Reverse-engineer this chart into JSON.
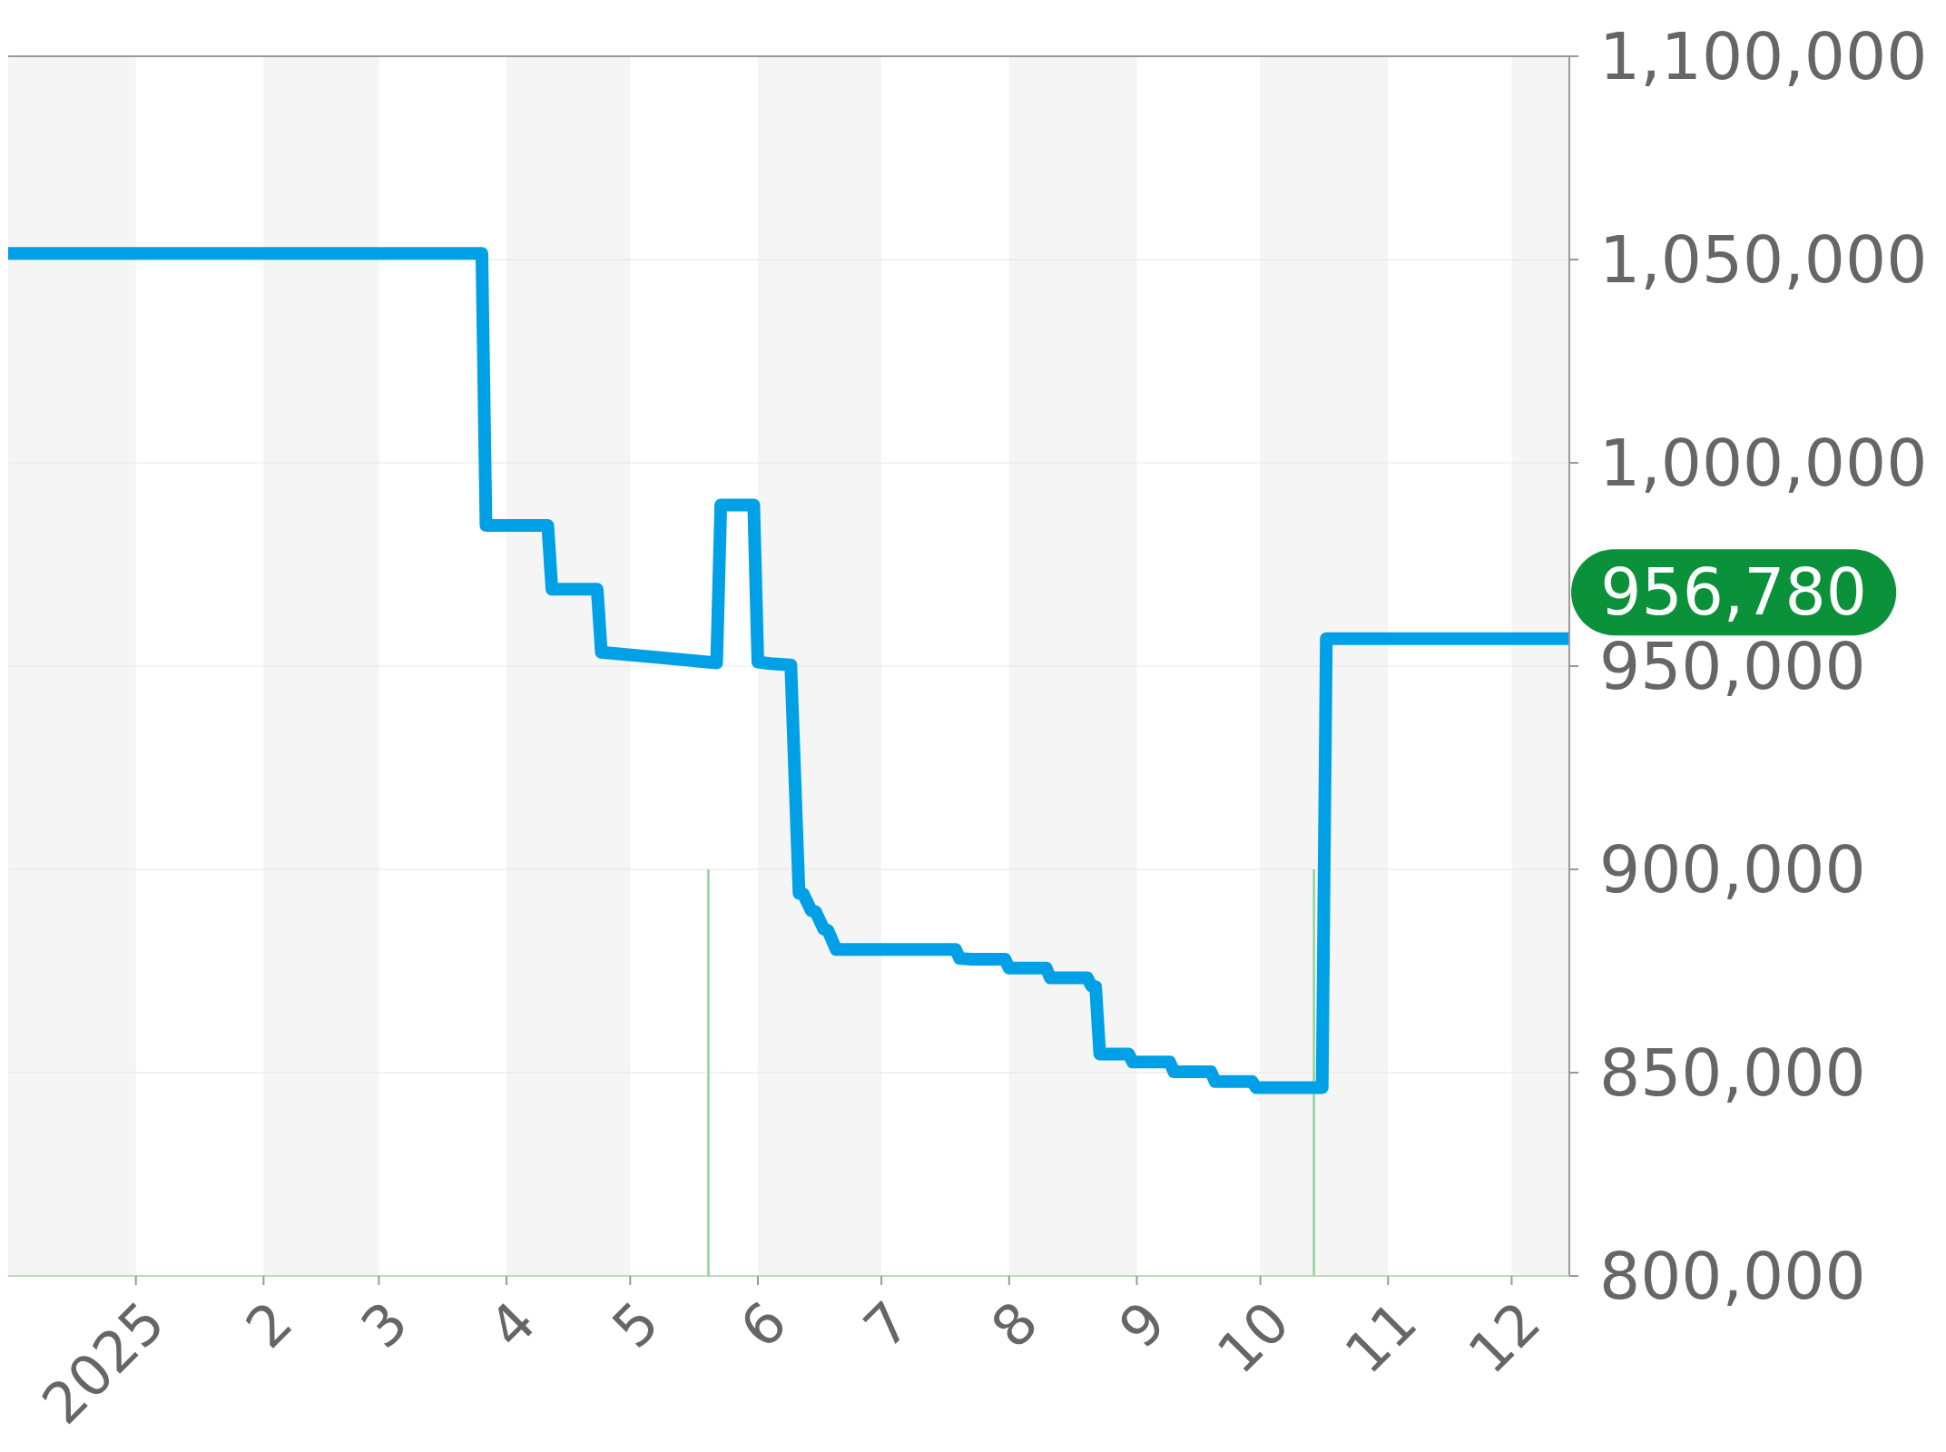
{
  "chart_data": {
    "type": "line",
    "xlim": [
      "2024-12-01",
      "2025-12-15"
    ],
    "xticks": [
      {
        "value": "2025-01-01",
        "label": "2025"
      },
      {
        "value": "2025-02-01",
        "label": "2"
      },
      {
        "value": "2025-03-01",
        "label": "3"
      },
      {
        "value": "2025-04-01",
        "label": "4"
      },
      {
        "value": "2025-05-01",
        "label": "5"
      },
      {
        "value": "2025-06-01",
        "label": "6"
      },
      {
        "value": "2025-07-01",
        "label": "7"
      },
      {
        "value": "2025-08-01",
        "label": "8"
      },
      {
        "value": "2025-09-01",
        "label": "9"
      },
      {
        "value": "2025-10-01",
        "label": "10"
      },
      {
        "value": "2025-11-01",
        "label": "11"
      },
      {
        "value": "2025-12-01",
        "label": "12"
      }
    ],
    "ylim": [
      800000,
      1100000
    ],
    "yticks": [
      {
        "value": 800000,
        "label": "800,000"
      },
      {
        "value": 850000,
        "label": "850,000"
      },
      {
        "value": 900000,
        "label": "900,000"
      },
      {
        "value": 950000,
        "label": "950,000"
      },
      {
        "value": 1000000,
        "label": "1,000,000"
      },
      {
        "value": 1050000,
        "label": "1,050,000"
      },
      {
        "value": 1100000,
        "label": "1,100,000"
      }
    ],
    "grid": "y",
    "bands": [
      {
        "axis": "x",
        "from": "2024-12-01",
        "to": "2025-01-01",
        "color": "#f5f5f5"
      },
      {
        "axis": "x",
        "from": "2025-02-01",
        "to": "2025-03-01",
        "color": "#f5f5f5"
      },
      {
        "axis": "x",
        "from": "2025-04-01",
        "to": "2025-05-01",
        "color": "#f5f5f5"
      },
      {
        "axis": "x",
        "from": "2025-06-01",
        "to": "2025-07-01",
        "color": "#f5f5f5"
      },
      {
        "axis": "x",
        "from": "2025-08-01",
        "to": "2025-09-01",
        "color": "#f5f5f5"
      },
      {
        "axis": "x",
        "from": "2025-10-01",
        "to": "2025-11-01",
        "color": "#f5f5f5"
      },
      {
        "axis": "x",
        "from": "2025-12-01",
        "to": "2025-12-15",
        "color": "#f5f5f5"
      }
    ],
    "series": [
      {
        "type": "bar",
        "color": "#8fd49c",
        "x": [
          "2025-05-20",
          "2025-10-14"
        ],
        "values": [
          900000,
          900000
        ]
      },
      {
        "color": "#00a0e6",
        "x": [
          "2024-12-01",
          "2025-03-26",
          "2025-03-27",
          "2025-04-11",
          "2025-04-12",
          "2025-04-23",
          "2025-04-24",
          "2025-05-22",
          "2025-05-23",
          "2025-05-31",
          "2025-06-01",
          "2025-06-04",
          "2025-06-09",
          "2025-06-11",
          "2025-06-12",
          "2025-06-14",
          "2025-06-15",
          "2025-06-17",
          "2025-06-18",
          "2025-06-20",
          "2025-07-19",
          "2025-07-20",
          "2025-07-23",
          "2025-07-31",
          "2025-08-01",
          "2025-08-10",
          "2025-08-11",
          "2025-08-20",
          "2025-08-21",
          "2025-08-22",
          "2025-08-23",
          "2025-08-30",
          "2025-08-31",
          "2025-09-09",
          "2025-09-10",
          "2025-09-19",
          "2025-09-20",
          "2025-09-29",
          "2025-09-30",
          "2025-10-16",
          "2025-10-17",
          "2025-12-15"
        ],
        "values": [
          1051500,
          1051500,
          984600,
          984600,
          968900,
          968900,
          953400,
          950800,
          989600,
          989600,
          951000,
          950600,
          950300,
          894100,
          894000,
          889800,
          889600,
          885300,
          885000,
          880300,
          880300,
          878100,
          877900,
          877900,
          875700,
          875700,
          873300,
          873300,
          871300,
          871100,
          854600,
          854600,
          852600,
          852600,
          850200,
          850200,
          847800,
          847800,
          846300,
          846300,
          956780,
          956780
        ]
      }
    ],
    "annotations": [
      {
        "text": "956,780",
        "x": "2025-12-15",
        "y": 956780
      }
    ]
  }
}
